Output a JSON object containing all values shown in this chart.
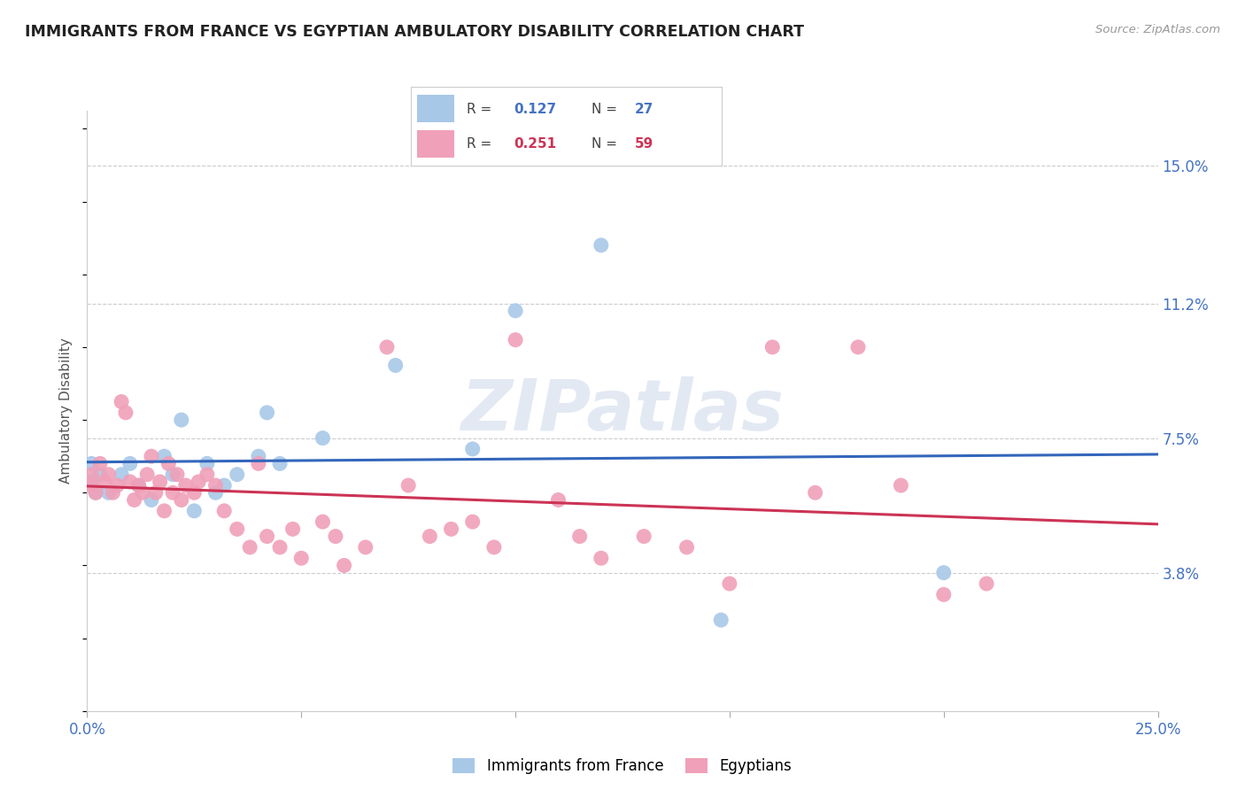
{
  "title": "IMMIGRANTS FROM FRANCE VS EGYPTIAN AMBULATORY DISABILITY CORRELATION CHART",
  "source": "Source: ZipAtlas.com",
  "ylabel": "Ambulatory Disability",
  "xlim": [
    0.0,
    0.25
  ],
  "ylim": [
    0.0,
    0.165
  ],
  "ytick_positions": [
    0.038,
    0.075,
    0.112,
    0.15
  ],
  "ytick_labels": [
    "3.8%",
    "7.5%",
    "11.2%",
    "15.0%"
  ],
  "color_blue": "#a8c8e8",
  "color_pink": "#f0a0b8",
  "line_color_blue": "#3366bb",
  "line_color_pink": "#cc3355",
  "watermark": "ZIPatlas",
  "background_color": "#ffffff",
  "grid_color": "#cccccc",
  "blue_x": [
    0.001,
    0.001,
    0.002,
    0.003,
    0.005,
    0.008,
    0.01,
    0.012,
    0.015,
    0.018,
    0.02,
    0.022,
    0.025,
    0.028,
    0.03,
    0.032,
    0.035,
    0.04,
    0.042,
    0.045,
    0.055,
    0.072,
    0.09,
    0.1,
    0.12,
    0.148,
    0.2
  ],
  "blue_y": [
    0.063,
    0.068,
    0.06,
    0.065,
    0.06,
    0.065,
    0.068,
    0.062,
    0.058,
    0.07,
    0.065,
    0.08,
    0.055,
    0.068,
    0.06,
    0.062,
    0.065,
    0.07,
    0.082,
    0.068,
    0.075,
    0.095,
    0.072,
    0.11,
    0.128,
    0.025,
    0.038
  ],
  "pink_x": [
    0.001,
    0.001,
    0.002,
    0.003,
    0.004,
    0.005,
    0.006,
    0.007,
    0.008,
    0.009,
    0.01,
    0.011,
    0.012,
    0.013,
    0.014,
    0.015,
    0.016,
    0.017,
    0.018,
    0.019,
    0.02,
    0.021,
    0.022,
    0.023,
    0.025,
    0.026,
    0.028,
    0.03,
    0.032,
    0.035,
    0.038,
    0.04,
    0.042,
    0.045,
    0.048,
    0.05,
    0.055,
    0.058,
    0.06,
    0.065,
    0.07,
    0.075,
    0.08,
    0.085,
    0.09,
    0.095,
    0.1,
    0.11,
    0.115,
    0.12,
    0.13,
    0.14,
    0.15,
    0.16,
    0.17,
    0.18,
    0.19,
    0.2,
    0.21
  ],
  "pink_y": [
    0.062,
    0.065,
    0.06,
    0.068,
    0.063,
    0.065,
    0.06,
    0.062,
    0.085,
    0.082,
    0.063,
    0.058,
    0.062,
    0.06,
    0.065,
    0.07,
    0.06,
    0.063,
    0.055,
    0.068,
    0.06,
    0.065,
    0.058,
    0.062,
    0.06,
    0.063,
    0.065,
    0.062,
    0.055,
    0.05,
    0.045,
    0.068,
    0.048,
    0.045,
    0.05,
    0.042,
    0.052,
    0.048,
    0.04,
    0.045,
    0.1,
    0.062,
    0.048,
    0.05,
    0.052,
    0.045,
    0.102,
    0.058,
    0.048,
    0.042,
    0.048,
    0.045,
    0.035,
    0.1,
    0.06,
    0.1,
    0.062,
    0.032,
    0.035
  ]
}
